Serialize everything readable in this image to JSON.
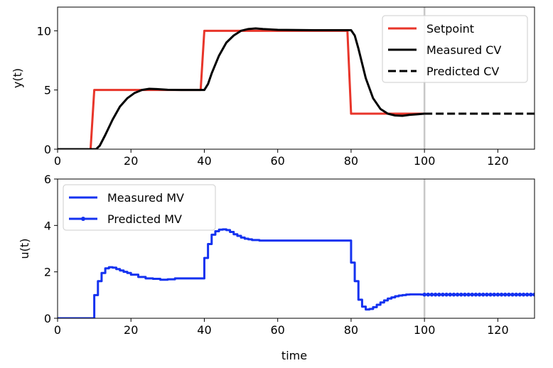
{
  "chart_data": [
    {
      "type": "line",
      "ylabel": "y(t)",
      "xlabel": "",
      "xlim": [
        0,
        130
      ],
      "ylim": [
        0,
        12
      ],
      "xticks": [
        "0",
        "20",
        "40",
        "60",
        "80",
        "100",
        "120"
      ],
      "yticks": [
        "0",
        "5",
        "10"
      ],
      "vline_x": 100,
      "legend_position": "top-right",
      "series": [
        {
          "name": "Setpoint",
          "color": "#e8352a",
          "style": "solid",
          "x": [
            0,
            9,
            10,
            39,
            40,
            79,
            80,
            100
          ],
          "values": [
            0,
            0,
            5,
            5,
            10,
            10,
            3,
            3
          ]
        },
        {
          "name": "Measured CV",
          "color": "#000000",
          "style": "solid",
          "x": [
            0,
            10.5,
            11.5,
            13,
            15,
            17,
            19,
            21,
            23,
            25,
            27,
            30,
            35,
            40,
            41,
            42,
            44,
            46,
            48,
            50,
            52,
            54,
            56,
            60,
            70,
            80,
            81,
            82,
            84,
            86,
            88,
            90,
            92,
            94,
            96,
            98,
            100
          ],
          "values": [
            0,
            0,
            0.3,
            1.2,
            2.5,
            3.6,
            4.3,
            4.75,
            5.0,
            5.1,
            5.08,
            5.02,
            5.0,
            5.0,
            5.5,
            6.4,
            7.9,
            9.0,
            9.6,
            10.0,
            10.15,
            10.2,
            10.15,
            10.08,
            10.05,
            10.05,
            9.6,
            8.5,
            6.0,
            4.3,
            3.4,
            3.0,
            2.85,
            2.82,
            2.9,
            2.95,
            3.0
          ]
        },
        {
          "name": "Predicted CV",
          "color": "#000000",
          "style": "dashed",
          "x": [
            100,
            130
          ],
          "values": [
            3.0,
            3.0
          ]
        }
      ]
    },
    {
      "type": "line",
      "ylabel": "u(t)",
      "xlabel": "time",
      "xlim": [
        0,
        130
      ],
      "ylim": [
        0,
        6
      ],
      "xticks": [
        "0",
        "20",
        "40",
        "60",
        "80",
        "100",
        "120"
      ],
      "yticks": [
        "0",
        "2",
        "4",
        "6"
      ],
      "vline_x": 100,
      "legend_position": "top-left",
      "series": [
        {
          "name": "Measured MV",
          "color": "#1432f0",
          "style": "step",
          "x": [
            0,
            10,
            11,
            12,
            13,
            14,
            15,
            16,
            17,
            18,
            19,
            20,
            22,
            24,
            26,
            28,
            30,
            32,
            35,
            40,
            41,
            42,
            43,
            44,
            45,
            46,
            47,
            48,
            49,
            50,
            51,
            52,
            53,
            55,
            60,
            70,
            80,
            81,
            82,
            83,
            84,
            85,
            86,
            87,
            88,
            89,
            90,
            91,
            92,
            93,
            94,
            95,
            96,
            97,
            98,
            99,
            100
          ],
          "values": [
            0,
            1.0,
            1.6,
            1.95,
            2.15,
            2.2,
            2.18,
            2.12,
            2.06,
            2.0,
            1.95,
            1.88,
            1.78,
            1.72,
            1.7,
            1.66,
            1.68,
            1.72,
            1.72,
            2.6,
            3.2,
            3.6,
            3.75,
            3.82,
            3.83,
            3.8,
            3.72,
            3.62,
            3.55,
            3.48,
            3.43,
            3.4,
            3.37,
            3.35,
            3.35,
            3.35,
            2.4,
            1.6,
            0.8,
            0.5,
            0.38,
            0.4,
            0.48,
            0.58,
            0.68,
            0.77,
            0.85,
            0.9,
            0.95,
            0.98,
            1.0,
            1.02,
            1.03,
            1.03,
            1.03,
            1.02,
            1.02
          ]
        },
        {
          "name": "Predicted MV",
          "color": "#1432f0",
          "style": "solid-dots",
          "x": [
            100,
            101,
            102,
            103,
            104,
            105,
            106,
            107,
            108,
            109,
            110,
            111,
            112,
            113,
            114,
            115,
            116,
            117,
            118,
            119,
            120,
            121,
            122,
            123,
            124,
            125,
            126,
            127,
            128,
            129,
            130
          ],
          "values": [
            1.02,
            1.02,
            1.02,
            1.02,
            1.02,
            1.02,
            1.02,
            1.02,
            1.02,
            1.02,
            1.02,
            1.02,
            1.02,
            1.02,
            1.02,
            1.02,
            1.02,
            1.02,
            1.02,
            1.02,
            1.02,
            1.02,
            1.02,
            1.02,
            1.02,
            1.02,
            1.02,
            1.02,
            1.02,
            1.02,
            1.02
          ]
        }
      ]
    }
  ]
}
